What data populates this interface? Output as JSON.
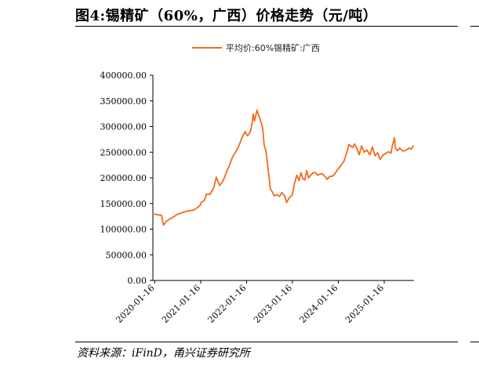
{
  "header": {
    "title": "图4:锡精矿（60%，广西）价格走势（元/吨）"
  },
  "footer": {
    "source": "资料来源：iFinD，甬兴证券研究所"
  },
  "colors": {
    "series": "#f26b1d",
    "axis": "#000000"
  },
  "chart_data": {
    "type": "line",
    "title": "图4:锡精矿（60%，广西）价格走势（元/吨）",
    "xlabel": "",
    "ylabel": "",
    "ylim": [
      0,
      400000
    ],
    "yticks": [
      "0.00",
      "50000.00",
      "100000.00",
      "150000.00",
      "200000.00",
      "250000.00",
      "300000.00",
      "350000.00",
      "400000.00"
    ],
    "xlim": [
      "2020-01-01",
      "2025-09-10"
    ],
    "xticks": [
      "2020-01-16",
      "2021-01-16",
      "2022-01-16",
      "2023-01-16",
      "2024-01-16",
      "2025-01-16"
    ],
    "grid": false,
    "legend": "top-center",
    "series": [
      {
        "name": "平均价:60%锡精矿:广西",
        "x": [
          "2020-01-01",
          "2020-02-10",
          "2020-03-10",
          "2020-03-25",
          "2020-04-20",
          "2020-06-01",
          "2020-07-15",
          "2020-09-01",
          "2020-10-15",
          "2020-11-20",
          "2020-12-20",
          "2021-01-10",
          "2021-01-20",
          "2021-02-15",
          "2021-03-01",
          "2021-04-01",
          "2021-05-01",
          "2021-05-20",
          "2021-06-15",
          "2021-07-15",
          "2021-08-15",
          "2021-09-05",
          "2021-09-25",
          "2021-10-25",
          "2021-11-15",
          "2021-12-10",
          "2022-01-05",
          "2022-01-25",
          "2022-02-15",
          "2022-03-01",
          "2022-03-10",
          "2022-03-20",
          "2022-04-10",
          "2022-04-25",
          "2022-05-10",
          "2022-05-25",
          "2022-06-05",
          "2022-06-20",
          "2022-07-10",
          "2022-07-25",
          "2022-08-10",
          "2022-08-25",
          "2022-09-15",
          "2022-10-05",
          "2022-10-25",
          "2022-11-15",
          "2022-12-01",
          "2022-12-20",
          "2023-01-15",
          "2023-02-01",
          "2023-02-20",
          "2023-03-10",
          "2023-03-25",
          "2023-04-10",
          "2023-04-25",
          "2023-05-10",
          "2023-05-25",
          "2023-06-10",
          "2023-07-01",
          "2023-07-20",
          "2023-08-05",
          "2023-08-20",
          "2023-09-10",
          "2023-10-01",
          "2023-10-20",
          "2023-11-10",
          "2023-12-01",
          "2023-12-20",
          "2024-01-10",
          "2024-02-01",
          "2024-03-01",
          "2024-03-25",
          "2024-04-10",
          "2024-04-25",
          "2024-05-10",
          "2024-05-25",
          "2024-06-10",
          "2024-07-01",
          "2024-07-20",
          "2024-08-10",
          "2024-09-01",
          "2024-09-25",
          "2024-10-15",
          "2024-11-05",
          "2024-11-25",
          "2024-12-15",
          "2025-01-10",
          "2025-02-01",
          "2025-02-20",
          "2025-03-10",
          "2025-03-25",
          "2025-04-08",
          "2025-04-15",
          "2025-05-01",
          "2025-05-20",
          "2025-06-15",
          "2025-07-10",
          "2025-08-01",
          "2025-08-20",
          "2025-09-05"
        ],
        "y": [
          130000,
          128000,
          127000,
          108000,
          116000,
          122000,
          129000,
          133000,
          136000,
          137000,
          142000,
          146000,
          152000,
          156000,
          168000,
          168000,
          181000,
          201000,
          185000,
          195000,
          215000,
          226000,
          240000,
          252000,
          262000,
          278000,
          290000,
          282000,
          290000,
          305000,
          324000,
          311000,
          332000,
          320000,
          310000,
          296000,
          264000,
          252000,
          210000,
          178000,
          172000,
          165000,
          167000,
          164000,
          171000,
          165000,
          152000,
          160000,
          167000,
          188000,
          205000,
          195000,
          210000,
          198000,
          196000,
          214000,
          200000,
          205000,
          210000,
          210000,
          205000,
          207000,
          208000,
          203000,
          197000,
          203000,
          203000,
          208000,
          216000,
          222000,
          232000,
          250000,
          265000,
          262000,
          259000,
          266000,
          258000,
          245000,
          262000,
          250000,
          254000,
          245000,
          260000,
          243000,
          249000,
          236000,
          245000,
          248000,
          251000,
          248000,
          265000,
          278000,
          258000,
          253000,
          258000,
          252000,
          254000,
          258000,
          256000,
          262000
        ]
      }
    ]
  }
}
